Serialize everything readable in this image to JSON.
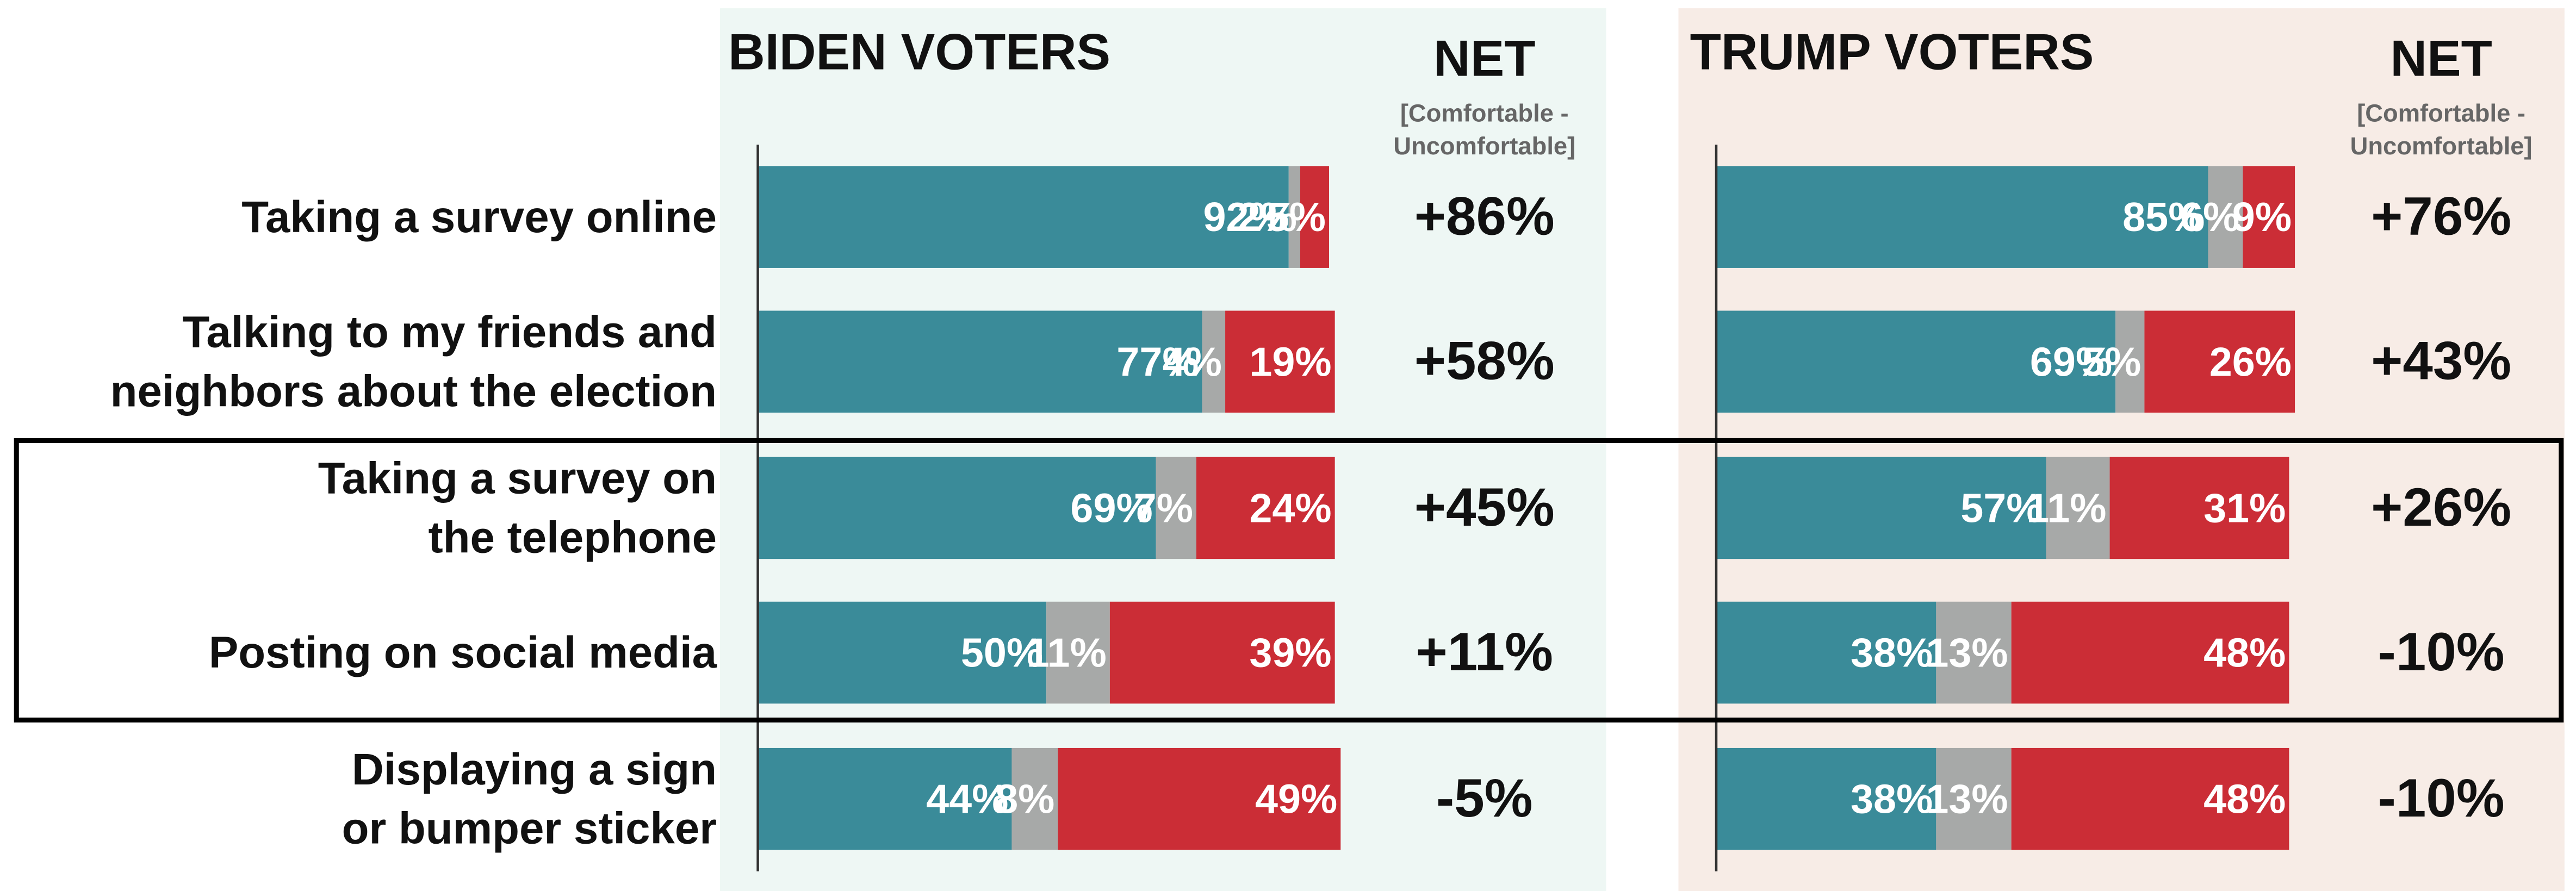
{
  "chart_data": {
    "type": "bar",
    "xlim": [
      0,
      100
    ],
    "categories": [
      [
        "Taking a survey online"
      ],
      [
        "Talking to my friends and",
        "neighbors about the election"
      ],
      [
        "Taking a survey on",
        "the telephone"
      ],
      [
        "Posting on social media"
      ],
      [
        "Displaying a sign",
        "or bumper sticker"
      ]
    ],
    "panels": [
      {
        "title": "BIDEN VOTERS",
        "net_title": "NET",
        "net_subtitle": [
          "[Comfortable -",
          "Uncomfortable]"
        ],
        "background": "#eef7f4",
        "series": [
          {
            "color": "#3a8b99",
            "values": [
              92,
              77,
              69,
              50,
              44
            ],
            "value_labels": [
              "92%",
              "77%",
              "69%",
              "50%",
              "44%"
            ]
          },
          {
            "color": "#a7a9a8",
            "values": [
              2,
              4,
              7,
              11,
              8
            ],
            "value_labels": [
              "2%",
              "4%",
              "7%",
              "11%",
              "8%"
            ]
          },
          {
            "color": "#cb2d36",
            "values": [
              5,
              19,
              24,
              39,
              49
            ],
            "value_labels": [
              "5%",
              "19%",
              "24%",
              "39%",
              "49%"
            ]
          }
        ],
        "net": [
          86,
          58,
          45,
          11,
          -5
        ],
        "net_labels": [
          "+86%",
          "+58%",
          "+45%",
          "+11%",
          "-5%"
        ]
      },
      {
        "title": "TRUMP VOTERS",
        "net_title": "NET",
        "net_subtitle": [
          "[Comfortable -",
          "Uncomfortable]"
        ],
        "background": "#f7ece6",
        "series": [
          {
            "color": "#3a8b99",
            "values": [
              85,
              69,
              57,
              38,
              38
            ],
            "value_labels": [
              "85%",
              "69%",
              "57%",
              "38%",
              "38%"
            ]
          },
          {
            "color": "#a7a9a8",
            "values": [
              6,
              5,
              11,
              13,
              13
            ],
            "value_labels": [
              "6%",
              "5%",
              "11%",
              "13%",
              "13%"
            ]
          },
          {
            "color": "#cb2d36",
            "values": [
              9,
              26,
              31,
              48,
              48
            ],
            "value_labels": [
              "9%",
              "26%",
              "31%",
              "48%",
              "48%"
            ]
          }
        ],
        "net": [
          76,
          43,
          26,
          -10,
          -10
        ],
        "net_labels": [
          "+76%",
          "+43%",
          "+26%",
          "-10%",
          "-10%"
        ]
      }
    ]
  }
}
